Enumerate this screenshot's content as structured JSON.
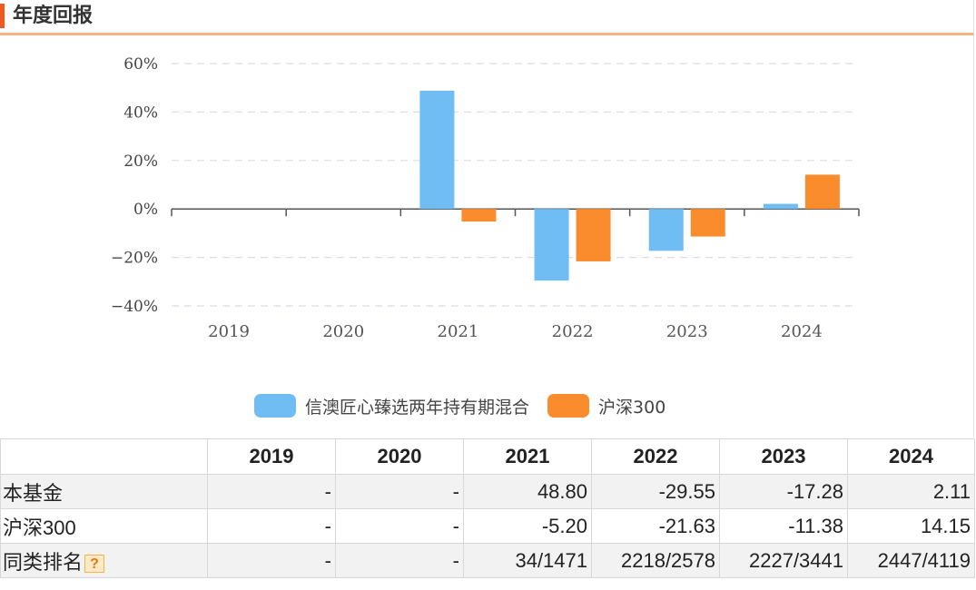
{
  "header": {
    "title": "年度回报"
  },
  "chart_data": {
    "type": "bar",
    "categories": [
      "2019",
      "2020",
      "2021",
      "2022",
      "2023",
      "2024"
    ],
    "series": [
      {
        "name": "信澳匠心臻选两年持有期混合",
        "color": "#6fbdf3",
        "values": [
          null,
          null,
          48.8,
          -29.55,
          -17.28,
          2.11
        ]
      },
      {
        "name": "沪深300",
        "color": "#fa8c2e",
        "values": [
          null,
          null,
          -5.2,
          -21.63,
          -11.38,
          14.15
        ]
      }
    ],
    "ylim": [
      -40,
      60
    ],
    "yticks": [
      60,
      40,
      20,
      0,
      -20,
      -40
    ],
    "ytick_labels": [
      "60%",
      "40%",
      "20%",
      "0%",
      "−20%",
      "−40%"
    ],
    "grid": true,
    "legend": "bottom"
  },
  "table": {
    "columns": [
      "",
      "2019",
      "2020",
      "2021",
      "2022",
      "2023",
      "2024"
    ],
    "rows": [
      {
        "label": "本基金",
        "cells": [
          "-",
          "-",
          "48.80",
          "-29.55",
          "-17.28",
          "2.11"
        ]
      },
      {
        "label": "沪深300",
        "cells": [
          "-",
          "-",
          "-5.20",
          "-21.63",
          "-11.38",
          "14.15"
        ]
      },
      {
        "label": "同类排名",
        "cells": [
          "-",
          "-",
          "34/1471",
          "2218/2578",
          "2227/3441",
          "2447/4119"
        ],
        "icon": "help-icon",
        "icon_text": "?"
      }
    ]
  }
}
